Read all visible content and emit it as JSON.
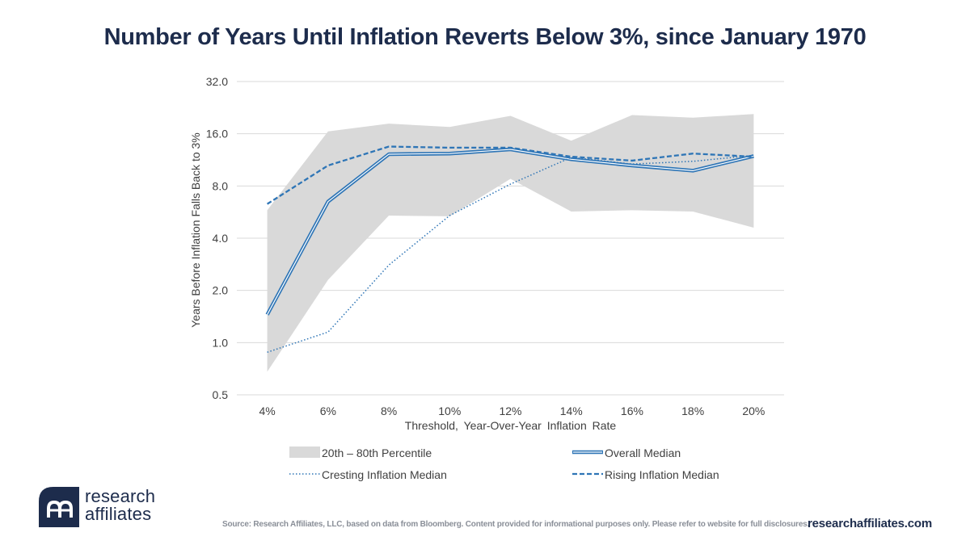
{
  "chart_data": {
    "type": "line",
    "title": "Number of Years Until Inflation Reverts Below 3%, since January 1970",
    "xlabel": "Threshold, Year-Over-Year Inflation Rate",
    "ylabel": "Years Before Inflation Falls Back to 3%",
    "yscale": "log2",
    "ylim": [
      0.5,
      32.0
    ],
    "yticks": [
      "0.5",
      "1.0",
      "2.0",
      "4.0",
      "8.0",
      "16.0",
      "32.0"
    ],
    "ytick_values": [
      0.5,
      1.0,
      2.0,
      4.0,
      8.0,
      16.0,
      32.0
    ],
    "categories": [
      "4%",
      "6%",
      "8%",
      "10%",
      "12%",
      "14%",
      "16%",
      "18%",
      "20%"
    ],
    "band": {
      "name": "20th – 80th Percentile",
      "lower": [
        0.68,
        2.3,
        5.4,
        5.35,
        8.8,
        5.7,
        5.8,
        5.7,
        4.6
      ],
      "upper": [
        5.8,
        16.5,
        18.3,
        17.5,
        20.3,
        14.6,
        20.5,
        19.8,
        20.8
      ]
    },
    "series": [
      {
        "name": "Overall Median",
        "style": "double",
        "values": [
          1.45,
          6.5,
          12.2,
          12.3,
          13.0,
          11.4,
          10.5,
          9.8,
          11.9
        ]
      },
      {
        "name": "Cresting Inflation Median",
        "style": "dotted",
        "values": [
          0.88,
          1.15,
          2.8,
          5.4,
          8.2,
          11.7,
          10.7,
          11.1,
          12.0
        ]
      },
      {
        "name": "Rising Inflation Median",
        "style": "dashed",
        "values": [
          6.3,
          10.5,
          13.5,
          13.3,
          13.3,
          11.8,
          11.2,
          12.3,
          11.8
        ]
      }
    ],
    "colors": {
      "band": "#d9d9d9",
      "line": "#2e75b6",
      "grid": "#d9d9d9",
      "text": "#404040"
    },
    "legend_position": "bottom"
  },
  "footer": {
    "source": "Source: Research Affiliates, LLC, based on data from Bloomberg. Content provided for informational purposes only. Please refer to website for full disclosures.",
    "url": "researchaffiliates.com",
    "logo_line1": "research",
    "logo_line2": "affiliates"
  },
  "brand": {
    "navy": "#1d2c4c"
  }
}
